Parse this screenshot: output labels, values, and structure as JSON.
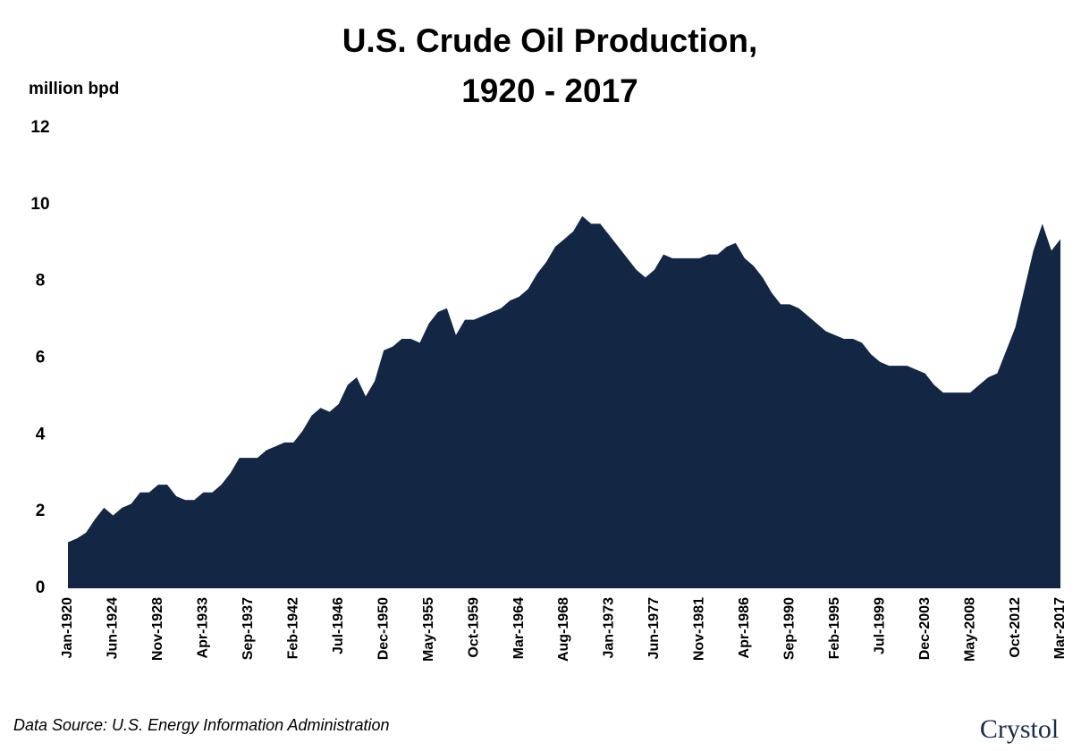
{
  "chart_data": {
    "type": "area",
    "title_lines": [
      "U.S. Crude Oil Production,",
      "1920 - 2017"
    ],
    "y_label": "million bpd",
    "source": "Data Source: U.S. Energy Information Administration",
    "logo": "Crystol",
    "color": "#132744",
    "categories": [
      "Jan-1920",
      null,
      null,
      null,
      null,
      "Jun-1924",
      null,
      null,
      null,
      null,
      "Nov-1928",
      null,
      null,
      null,
      null,
      "Apr-1933",
      null,
      null,
      null,
      null,
      "Sep-1937",
      null,
      null,
      null,
      null,
      "Feb-1942",
      null,
      null,
      null,
      null,
      "Jul-1946",
      null,
      null,
      null,
      null,
      "Dec-1950",
      null,
      null,
      null,
      null,
      "May-1955",
      null,
      null,
      null,
      null,
      "Oct-1959",
      null,
      null,
      null,
      null,
      "Mar-1964",
      null,
      null,
      null,
      null,
      "Aug-1968",
      null,
      null,
      null,
      null,
      "Jan-1973",
      null,
      null,
      null,
      null,
      "Jun-1977",
      null,
      null,
      null,
      null,
      "Nov-1981",
      null,
      null,
      null,
      null,
      "Apr-1986",
      null,
      null,
      null,
      null,
      "Sep-1990",
      null,
      null,
      null,
      null,
      "Feb-1995",
      null,
      null,
      null,
      null,
      "Jul-1999",
      null,
      null,
      null,
      null,
      "Dec-2003",
      null,
      null,
      null,
      null,
      "May-2008",
      null,
      null,
      null,
      null,
      "Oct-2012",
      null,
      null,
      null,
      null,
      "Mar-2017"
    ],
    "values": [
      1.2,
      1.3,
      1.45,
      1.8,
      2.1,
      1.9,
      2.1,
      2.2,
      2.5,
      2.5,
      2.7,
      2.7,
      2.4,
      2.3,
      2.3,
      2.5,
      2.5,
      2.7,
      3.0,
      3.4,
      3.4,
      3.4,
      3.6,
      3.7,
      3.8,
      3.8,
      4.1,
      4.5,
      4.7,
      4.6,
      4.8,
      5.3,
      5.5,
      5.0,
      5.4,
      6.2,
      6.3,
      6.5,
      6.5,
      6.4,
      6.9,
      7.2,
      7.3,
      6.6,
      7.0,
      7.0,
      7.1,
      7.2,
      7.3,
      7.5,
      7.6,
      7.8,
      8.2,
      8.5,
      8.9,
      9.1,
      9.3,
      9.7,
      9.5,
      9.5,
      9.2,
      8.9,
      8.6,
      8.3,
      8.1,
      8.3,
      8.7,
      8.6,
      8.6,
      8.6,
      8.6,
      8.7,
      8.7,
      8.9,
      9.0,
      8.6,
      8.4,
      8.1,
      7.7,
      7.4,
      7.4,
      7.3,
      7.1,
      6.9,
      6.7,
      6.6,
      6.5,
      6.5,
      6.4,
      6.1,
      5.9,
      5.8,
      5.8,
      5.8,
      5.7,
      5.6,
      5.3,
      5.1,
      5.1,
      5.1,
      5.1,
      5.3,
      5.5,
      5.6,
      6.2,
      6.8,
      7.8,
      8.8,
      9.5,
      8.8,
      9.1
    ],
    "ylim": [
      0,
      12
    ],
    "yticks": [
      0,
      2,
      4,
      6,
      8,
      10,
      12
    ],
    "grid": false
  }
}
